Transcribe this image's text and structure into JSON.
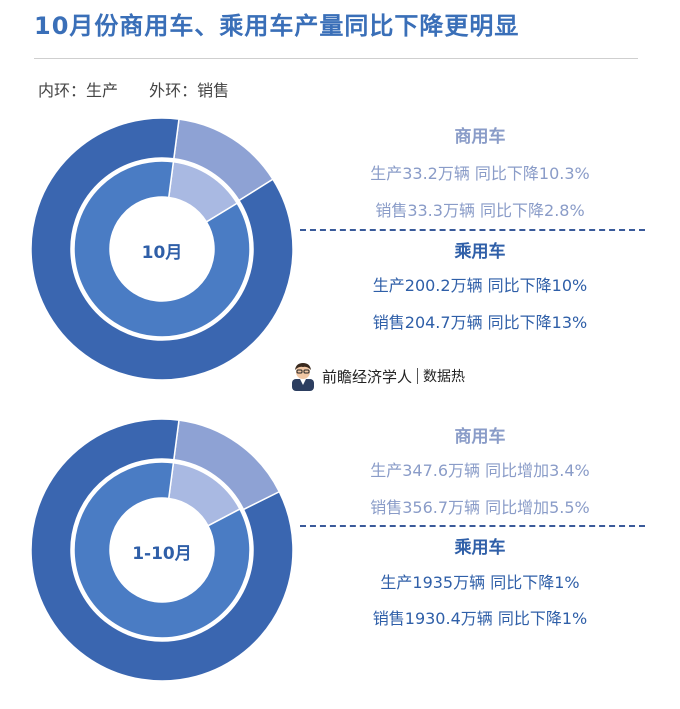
{
  "title": "10月份商用车、乘用车产量同比下降更明显",
  "legend_note": {
    "inner": "内环：生产",
    "outer": "外环：销售"
  },
  "colors": {
    "commercial": "#8ea2d4",
    "commercial_inner": "#a9b9e2",
    "passenger_outer": "#3a66b0",
    "passenger_inner": "#4a7cc4",
    "title": "#3a6fb8"
  },
  "chart_data": [
    {
      "type": "pie",
      "center_label": "10月",
      "rings": [
        {
          "name": "内环：生产",
          "slices": [
            {
              "name": "商用车",
              "value": 33.2
            },
            {
              "name": "乘用车",
              "value": 200.2
            }
          ]
        },
        {
          "name": "外环：销售",
          "slices": [
            {
              "name": "商用车",
              "value": 33.3
            },
            {
              "name": "乘用车",
              "value": 204.7
            }
          ]
        }
      ],
      "annotations": {
        "commercial": {
          "head": "商用车",
          "production": "生产33.2万辆  同比下降10.3%",
          "sales": "销售33.3万辆  同比下降2.8%"
        },
        "passenger": {
          "head": "乘用车",
          "production": "生产200.2万辆  同比下降10%",
          "sales": "销售204.7万辆  同比下降13%"
        }
      }
    },
    {
      "type": "pie",
      "center_label": "1-10月",
      "rings": [
        {
          "name": "内环：生产",
          "slices": [
            {
              "name": "商用车",
              "value": 347.6
            },
            {
              "name": "乘用车",
              "value": 1935
            }
          ]
        },
        {
          "name": "外环：销售",
          "slices": [
            {
              "name": "商用车",
              "value": 356.7
            },
            {
              "name": "乘用车",
              "value": 1930.4
            }
          ]
        }
      ],
      "annotations": {
        "commercial": {
          "head": "商用车",
          "production": "生产347.6万辆  同比增加3.4%",
          "sales": "销售356.7万辆  同比增加5.5%"
        },
        "passenger": {
          "head": "乘用车",
          "production": "生产1935万辆  同比下降1%",
          "sales": "销售1930.4万辆  同比下降1%"
        }
      }
    }
  ],
  "brand": {
    "name": "前瞻经济学人",
    "tag": "数据热",
    "icon": "person-avatar-icon"
  }
}
